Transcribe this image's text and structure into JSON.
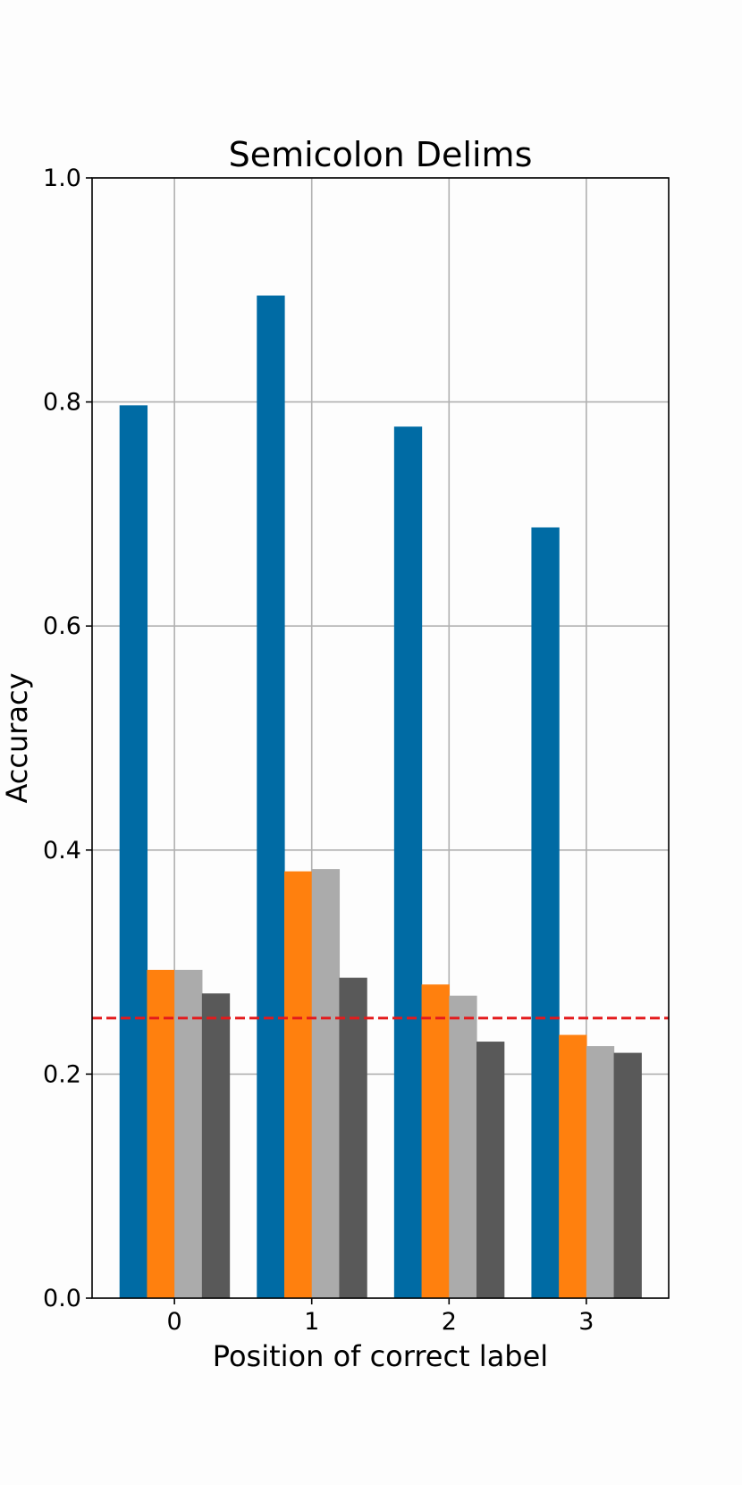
{
  "chart_data": {
    "type": "bar",
    "title": "Semicolon Delims",
    "xlabel": "Position of correct label",
    "ylabel": "Accuracy",
    "categories": [
      "0",
      "1",
      "2",
      "3"
    ],
    "series": [
      {
        "values": [
          0.797,
          0.895,
          0.778,
          0.688
        ],
        "color": "#006ba4"
      },
      {
        "values": [
          0.293,
          0.381,
          0.28,
          0.235
        ],
        "color": "#ff800e"
      },
      {
        "values": [
          0.293,
          0.383,
          0.27,
          0.225
        ],
        "color": "#ababab"
      },
      {
        "values": [
          0.272,
          0.286,
          0.229,
          0.219
        ],
        "color": "#595959"
      }
    ],
    "ylim": [
      0.0,
      1.0
    ],
    "yticks": [
      "0.0",
      "0.2",
      "0.4",
      "0.6",
      "0.8",
      "1.0"
    ],
    "grid": true,
    "reference_line": {
      "y": 0.25,
      "color": "#e41a1c",
      "style": "dashed"
    }
  }
}
